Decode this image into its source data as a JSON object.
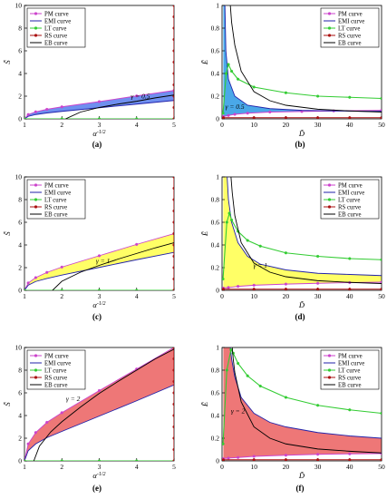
{
  "legend_entries": [
    {
      "label": "PM curve",
      "color": "#cc44cc",
      "marker": "circle"
    },
    {
      "label": "EMI curve",
      "color": "#2222aa",
      "marker": "none"
    },
    {
      "label": "LT curve",
      "color": "#33cc33",
      "marker": "circle"
    },
    {
      "label": "RS curve",
      "color": "#aa1111",
      "marker": "circle"
    },
    {
      "label": "EB curve",
      "color": "#000000",
      "marker": "none"
    }
  ],
  "chart_data": [
    {
      "type": "area",
      "panel": "a",
      "caption": "(a)",
      "xlabel": "α^{-1/2}",
      "ylabel": "S̃",
      "xlim": [
        1,
        5
      ],
      "ylim": [
        0,
        10
      ],
      "xticks": [
        1,
        2,
        3,
        4,
        5
      ],
      "yticks": [
        0,
        2,
        4,
        6,
        8,
        10
      ],
      "legend_position": "top-left",
      "annotation": {
        "text": "γ = 0.5",
        "x": 4.1,
        "y": 1.8
      },
      "fill_color": "#6f8fef",
      "series": [
        {
          "name": "PM curve",
          "x": [
            1,
            1.1,
            1.3,
            1.6,
            2,
            3,
            4,
            5
          ],
          "y": [
            0,
            0.38,
            0.62,
            0.84,
            1.06,
            1.52,
            2.02,
            2.5
          ]
        },
        {
          "name": "EMI curve",
          "x": [
            1,
            1.1,
            1.3,
            1.6,
            2,
            3,
            4,
            5
          ],
          "y": [
            0,
            0.22,
            0.38,
            0.52,
            0.66,
            0.98,
            1.3,
            1.62
          ]
        },
        {
          "name": "LT curve",
          "x": [
            1,
            2,
            3,
            4,
            5
          ],
          "y": [
            0,
            0,
            0,
            0,
            0
          ]
        },
        {
          "name": "RS curve",
          "x": [
            5,
            5,
            5,
            5,
            5,
            5,
            5,
            5,
            5,
            5,
            5
          ],
          "y": [
            0,
            1,
            2,
            3,
            4,
            5,
            6,
            7,
            8,
            9,
            10
          ]
        },
        {
          "name": "EB curve",
          "x": [
            2.1,
            2.5,
            3,
            3.5,
            4,
            4.5,
            5
          ],
          "y": [
            0,
            0.6,
            1.0,
            1.3,
            1.55,
            1.85,
            2.1
          ]
        }
      ]
    },
    {
      "type": "area",
      "panel": "b",
      "caption": "(b)",
      "xlabel": "D̃",
      "ylabel": "Ẽ",
      "xlim": [
        0,
        50
      ],
      "ylim": [
        0,
        1
      ],
      "xticks": [
        0,
        10,
        20,
        30,
        40,
        50
      ],
      "yticks": [
        0,
        0.2,
        0.4,
        0.6,
        0.8,
        1
      ],
      "legend_position": "top-right",
      "annotation": {
        "text": "γ = 0.5",
        "x": 4,
        "y": 0.09
      },
      "fill_color": "#4aa8e8",
      "series": [
        {
          "name": "PM curve",
          "x": [
            0.4,
            2,
            4,
            8,
            15,
            25,
            35,
            50
          ],
          "y": [
            0.02,
            0.03,
            0.04,
            0.05,
            0.06,
            0.065,
            0.07,
            0.075
          ]
        },
        {
          "name": "EMI curve",
          "x": [
            0.9,
            1.2,
            2,
            4,
            8,
            15,
            25,
            35,
            50
          ],
          "y": [
            1.0,
            0.6,
            0.35,
            0.2,
            0.12,
            0.09,
            0.075,
            0.07,
            0.065
          ]
        },
        {
          "name": "LT curve",
          "x": [
            0.3,
            1.3,
            2.0,
            3,
            5,
            10,
            20,
            30,
            40,
            50
          ],
          "y": [
            0.05,
            0.4,
            0.48,
            0.42,
            0.35,
            0.28,
            0.23,
            0.2,
            0.19,
            0.18
          ]
        },
        {
          "name": "RS curve",
          "x": [
            0.4,
            10,
            20,
            30,
            40,
            50
          ],
          "y": [
            0.01,
            0.01,
            0.01,
            0.01,
            0.01,
            0.01
          ]
        },
        {
          "name": "EB curve",
          "x": [
            2.6,
            3,
            4,
            6,
            10,
            15,
            20,
            30,
            40,
            50
          ],
          "y": [
            1.0,
            0.85,
            0.65,
            0.42,
            0.24,
            0.16,
            0.12,
            0.085,
            0.07,
            0.06
          ]
        }
      ]
    },
    {
      "type": "area",
      "panel": "c",
      "caption": "(c)",
      "xlabel": "α^{-1/2}",
      "ylabel": "S̃",
      "xlim": [
        1,
        5
      ],
      "ylim": [
        0,
        10
      ],
      "xticks": [
        1,
        2,
        3,
        4,
        5
      ],
      "yticks": [
        0,
        2,
        4,
        6,
        8,
        10
      ],
      "legend_position": "top-left",
      "annotation": {
        "text": "γ = 1",
        "x": 3.1,
        "y": 2.4
      },
      "fill_color": "#ffff66",
      "series": [
        {
          "name": "PM curve",
          "x": [
            1,
            1.1,
            1.3,
            1.6,
            2,
            3,
            4,
            5
          ],
          "y": [
            0,
            0.65,
            1.12,
            1.58,
            2.05,
            3.05,
            4.05,
            5.0
          ]
        },
        {
          "name": "EMI curve",
          "x": [
            1,
            1.1,
            1.3,
            1.6,
            2,
            3,
            4,
            5
          ],
          "y": [
            0,
            0.45,
            0.78,
            1.05,
            1.35,
            2.02,
            2.7,
            3.35
          ]
        },
        {
          "name": "LT curve",
          "x": [
            1,
            2,
            3,
            4,
            5
          ],
          "y": [
            0,
            0,
            0,
            0,
            0
          ]
        },
        {
          "name": "RS curve",
          "x": [
            5,
            5,
            5,
            5,
            5,
            5,
            5,
            5,
            5,
            5,
            5
          ],
          "y": [
            0,
            1,
            2,
            3,
            4,
            5,
            6,
            7,
            8,
            9,
            10
          ]
        },
        {
          "name": "EB curve",
          "x": [
            1.75,
            2,
            2.5,
            3,
            3.5,
            4,
            4.5,
            5
          ],
          "y": [
            0,
            0.8,
            1.6,
            2.2,
            2.75,
            3.25,
            3.75,
            4.2
          ]
        }
      ]
    },
    {
      "type": "area",
      "panel": "d",
      "caption": "(d)",
      "xlabel": "D̃",
      "ylabel": "Ẽ",
      "xlim": [
        0,
        50
      ],
      "ylim": [
        0,
        1
      ],
      "xticks": [
        0,
        10,
        20,
        30,
        40,
        50
      ],
      "yticks": [
        0,
        0.2,
        0.4,
        0.6,
        0.8,
        1
      ],
      "legend_position": "top-right",
      "annotation": {
        "text": "γ = 1",
        "x": 12,
        "y": 0.2
      },
      "fill_color": "#ffff66",
      "series": [
        {
          "name": "PM curve",
          "x": [
            0.4,
            2,
            5,
            10,
            20,
            30,
            40,
            50
          ],
          "y": [
            0.02,
            0.025,
            0.035,
            0.045,
            0.055,
            0.062,
            0.068,
            0.072
          ]
        },
        {
          "name": "EMI curve",
          "x": [
            1.6,
            2,
            3,
            5,
            8,
            12,
            20,
            30,
            40,
            50
          ],
          "y": [
            1.0,
            0.8,
            0.6,
            0.42,
            0.3,
            0.23,
            0.18,
            0.15,
            0.14,
            0.13
          ]
        },
        {
          "name": "LT curve",
          "x": [
            0.3,
            1.5,
            2.3,
            3,
            5,
            8,
            12,
            20,
            30,
            40,
            50
          ],
          "y": [
            0.1,
            0.6,
            0.68,
            0.62,
            0.52,
            0.44,
            0.39,
            0.33,
            0.3,
            0.28,
            0.27
          ]
        },
        {
          "name": "RS curve",
          "x": [
            0.4,
            10,
            20,
            30,
            40,
            50
          ],
          "y": [
            0.01,
            0.01,
            0.01,
            0.01,
            0.01,
            0.01
          ]
        },
        {
          "name": "EB curve",
          "x": [
            2.8,
            3.2,
            4,
            6,
            10,
            15,
            20,
            30,
            40,
            50
          ],
          "y": [
            1.0,
            0.86,
            0.66,
            0.42,
            0.24,
            0.16,
            0.12,
            0.085,
            0.07,
            0.06
          ]
        }
      ]
    },
    {
      "type": "area",
      "panel": "e",
      "caption": "(e)",
      "xlabel": "α^{-1/2}",
      "ylabel": "S̃",
      "xlim": [
        1,
        5
      ],
      "ylim": [
        0,
        10
      ],
      "xticks": [
        1,
        2,
        3,
        4,
        5
      ],
      "yticks": [
        0,
        2,
        4,
        6,
        8,
        10
      ],
      "legend_position": "top-left",
      "annotation": {
        "text": "γ = 2",
        "x": 2.3,
        "y": 5.3
      },
      "fill_color": "#ee7777",
      "series": [
        {
          "name": "PM curve",
          "x": [
            1,
            1.1,
            1.3,
            1.6,
            2,
            3,
            4,
            5
          ],
          "y": [
            0,
            1.5,
            2.5,
            3.4,
            4.25,
            6.2,
            8.1,
            10.0
          ]
        },
        {
          "name": "EMI curve",
          "x": [
            1,
            1.1,
            1.3,
            1.6,
            2,
            3,
            4,
            5
          ],
          "y": [
            0,
            0.9,
            1.5,
            2.05,
            2.6,
            3.95,
            5.3,
            6.7
          ]
        },
        {
          "name": "LT curve",
          "x": [
            1,
            2,
            3,
            4,
            5
          ],
          "y": [
            0,
            0,
            0,
            0,
            0
          ]
        },
        {
          "name": "RS curve",
          "x": [
            5,
            5,
            5,
            5,
            5,
            5,
            5,
            5,
            5,
            5,
            5
          ],
          "y": [
            0,
            1,
            2,
            3,
            4,
            5,
            6,
            7,
            8,
            9,
            10
          ]
        },
        {
          "name": "EB curve",
          "x": [
            1.25,
            1.4,
            1.7,
            2,
            2.5,
            3,
            3.5,
            4,
            4.5,
            5
          ],
          "y": [
            0,
            1.3,
            2.55,
            3.45,
            4.75,
            5.95,
            7.0,
            8.0,
            9.0,
            9.85
          ]
        }
      ]
    },
    {
      "type": "area",
      "panel": "f",
      "caption": "(f)",
      "xlabel": "D̃",
      "ylabel": "Ẽ",
      "xlim": [
        0,
        50
      ],
      "ylim": [
        0,
        1
      ],
      "xticks": [
        0,
        10,
        20,
        30,
        40,
        50
      ],
      "yticks": [
        0,
        0.2,
        0.4,
        0.6,
        0.8,
        1
      ],
      "legend_position": "top-right",
      "annotation": {
        "text": "γ = 2",
        "x": 5,
        "y": 0.42
      },
      "fill_color": "#ee7777",
      "series": [
        {
          "name": "PM curve",
          "x": [
            0.4,
            2,
            5,
            10,
            20,
            30,
            40,
            50
          ],
          "y": [
            0.02,
            0.025,
            0.03,
            0.04,
            0.05,
            0.058,
            0.062,
            0.065
          ]
        },
        {
          "name": "EMI curve",
          "x": [
            2.6,
            3,
            4,
            6,
            10,
            15,
            20,
            30,
            40,
            50
          ],
          "y": [
            1.0,
            0.9,
            0.74,
            0.56,
            0.42,
            0.34,
            0.3,
            0.25,
            0.22,
            0.2
          ]
        },
        {
          "name": "LT curve",
          "x": [
            0.3,
            1.5,
            2.8,
            3.5,
            5,
            8,
            12,
            20,
            30,
            40,
            50
          ],
          "y": [
            0.15,
            0.8,
            0.98,
            0.95,
            0.86,
            0.75,
            0.66,
            0.56,
            0.49,
            0.45,
            0.42
          ]
        },
        {
          "name": "RS curve",
          "x": [
            0.4,
            10,
            20,
            30,
            40,
            50
          ],
          "y": [
            0.01,
            0.01,
            0.01,
            0.01,
            0.01,
            0.01
          ]
        },
        {
          "name": "EB curve",
          "x": [
            3.2,
            3.5,
            4,
            6,
            10,
            15,
            20,
            30,
            40,
            50
          ],
          "y": [
            1.0,
            0.9,
            0.78,
            0.52,
            0.3,
            0.2,
            0.15,
            0.105,
            0.085,
            0.07
          ]
        }
      ]
    }
  ]
}
